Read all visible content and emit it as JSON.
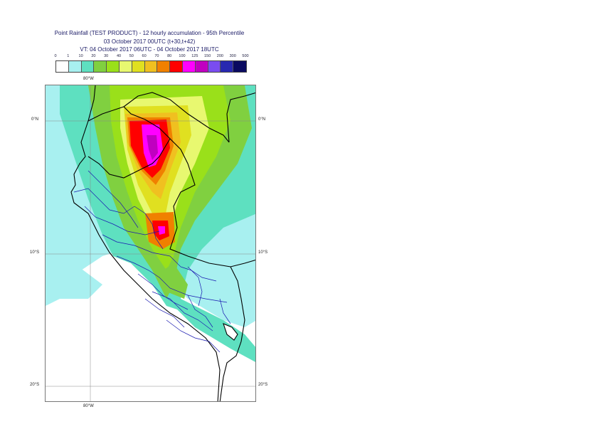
{
  "title": {
    "line1": "Point Rainfall (TEST PRODUCT) - 12 hourly accumulation - 95th Percentile",
    "line2": "03 October 2017 00UTC (t+30,t+42)",
    "line3": "VT: 04 October 2017 06UTC - 04 October 2017 18UTC"
  },
  "legend": {
    "labels": [
      "0",
      "1",
      "10",
      "20",
      "30",
      "40",
      "50",
      "60",
      "70",
      "80",
      "100",
      "125",
      "150",
      "200",
      "300",
      "500"
    ],
    "colors": [
      "#ffffff",
      "#a8f0f0",
      "#5ee0c0",
      "#80d040",
      "#9ae01a",
      "#e8f870",
      "#e0e020",
      "#f0c020",
      "#f08000",
      "#ff0000",
      "#ff00ff",
      "#c000c0",
      "#7a4cf0",
      "#2828b0",
      "#0a0a60"
    ]
  },
  "axes": {
    "top_lon": "80°W",
    "bottom_lon": "80°W",
    "lat_0_left": "0°N",
    "lat_0_right": "0°N",
    "lat_10_left": "10°S",
    "lat_10_right": "10°S",
    "lat_20_left": "20°S",
    "lat_20_right": "20°S"
  }
}
